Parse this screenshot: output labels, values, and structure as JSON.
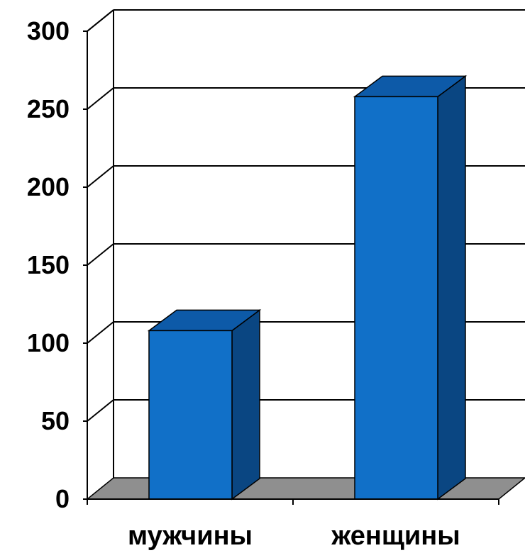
{
  "chart_data": {
    "type": "bar",
    "title": "",
    "xlabel": "",
    "ylabel": "",
    "categories": [
      "мужчины",
      "женщины"
    ],
    "values": [
      108,
      258
    ],
    "ylim": [
      0,
      300
    ],
    "yticks": [
      "0",
      "50",
      "100",
      "150",
      "200",
      "250",
      "300"
    ],
    "grid": true,
    "legend": "none",
    "style": "3d-column",
    "colors": {
      "bar_front": "#1170c8",
      "bar_top": "#0d5aa8",
      "bar_side": "#0a4682",
      "floor": "#8f8f8f",
      "background": "#ffffff"
    }
  }
}
